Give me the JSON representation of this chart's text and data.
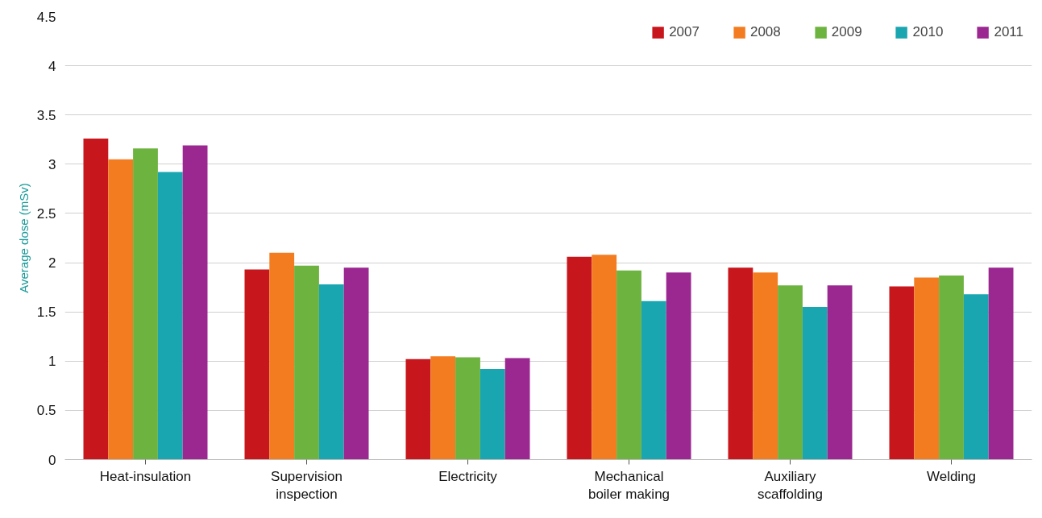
{
  "chart_data": {
    "type": "bar",
    "ylabel": "Average dose (mSv)",
    "categories": [
      "Heat-insulation",
      "Supervision\ninspection",
      "Electricity",
      "Mechanical\nboiler making",
      "Auxiliary\nscaffolding",
      "Welding"
    ],
    "series": [
      {
        "name": "2007",
        "color": "#c8161d",
        "values": [
          3.26,
          1.93,
          1.02,
          2.06,
          1.95,
          1.76
        ]
      },
      {
        "name": "2008",
        "color": "#f47c20",
        "values": [
          3.05,
          2.1,
          1.05,
          2.08,
          1.9,
          1.85
        ]
      },
      {
        "name": "2009",
        "color": "#6db33f",
        "values": [
          3.16,
          1.97,
          1.04,
          1.92,
          1.77,
          1.87
        ]
      },
      {
        "name": "2010",
        "color": "#1aa6b0",
        "values": [
          2.92,
          1.78,
          0.92,
          1.61,
          1.55,
          1.68
        ]
      },
      {
        "name": "2011",
        "color": "#9b2790",
        "values": [
          3.19,
          1.95,
          1.03,
          1.9,
          1.77,
          1.95
        ]
      }
    ],
    "ylim": [
      0,
      4.5
    ],
    "yticks": [
      0,
      0.5,
      1,
      1.5,
      2,
      2.5,
      3,
      3.5,
      4,
      4.5
    ],
    "grid": "y",
    "legend": "top right"
  }
}
